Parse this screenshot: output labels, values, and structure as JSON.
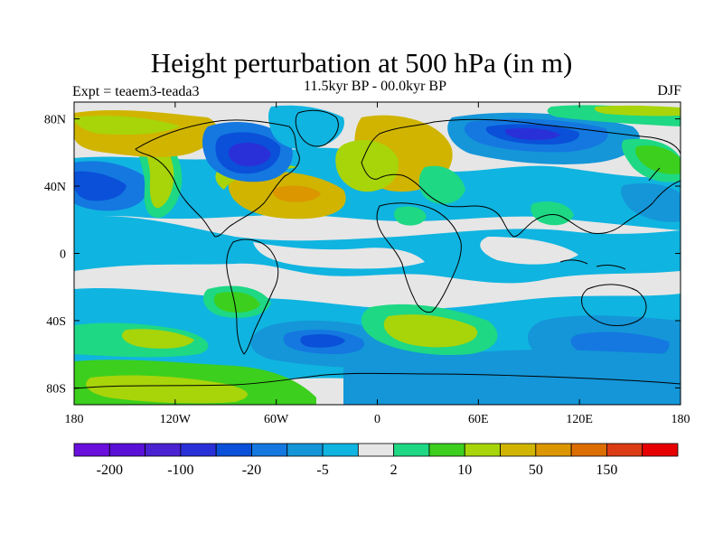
{
  "title": "Height perturbation at 500 hPa (in m)",
  "subtitle": "11.5kyr BP - 00.0kyr BP",
  "left_label": "Expt = teaem3-teada3",
  "right_label": "DJF",
  "axes": {
    "x_ticks": [
      {
        "value": -180,
        "label": "180"
      },
      {
        "value": -120,
        "label": "120W"
      },
      {
        "value": -60,
        "label": "60W"
      },
      {
        "value": 0,
        "label": "0"
      },
      {
        "value": 60,
        "label": "60E"
      },
      {
        "value": 120,
        "label": "120E"
      },
      {
        "value": 180,
        "label": "180"
      }
    ],
    "y_ticks": [
      {
        "value": 80,
        "label": "80N"
      },
      {
        "value": 40,
        "label": "40N"
      },
      {
        "value": 0,
        "label": "0"
      },
      {
        "value": -40,
        "label": "40S"
      },
      {
        "value": -80,
        "label": "80S"
      }
    ],
    "lon_range": [
      -180,
      180
    ],
    "lat_range": [
      -90,
      90
    ]
  },
  "colorbar": {
    "colors": [
      "#6a0fdc",
      "#5a10d6",
      "#4a22d2",
      "#2a30d8",
      "#0a50d8",
      "#1478e0",
      "#1496d8",
      "#10b4e0",
      "#e6e6e6",
      "#1ed884",
      "#3ccf1e",
      "#a8d40a",
      "#d0b400",
      "#dc9600",
      "#dc6e00",
      "#dc3c14",
      "#e60000"
    ],
    "labels": [
      {
        "after_box": 1,
        "text": "-200"
      },
      {
        "after_box": 3,
        "text": "-100"
      },
      {
        "after_box": 5,
        "text": "-20"
      },
      {
        "after_box": 7,
        "text": "-5"
      },
      {
        "after_box": 9,
        "text": "2"
      },
      {
        "after_box": 11,
        "text": "10"
      },
      {
        "after_box": 13,
        "text": "50"
      },
      {
        "after_box": 15,
        "text": "150"
      }
    ]
  },
  "colors": {
    "neutral": "#e6e6e6",
    "light_blue": "#10b4e0",
    "mid_blue": "#1496d8",
    "blue": "#1478e0",
    "dark_blue": "#0a50d8",
    "deep_blue": "#2a30d8",
    "purple": "#5a10d6",
    "green": "#1ed884",
    "bright_green": "#3ccf1e",
    "yellow_green": "#a8d40a",
    "olive": "#d0b400",
    "orange": "#dc9600",
    "dark_orange": "#dc6e00"
  }
}
